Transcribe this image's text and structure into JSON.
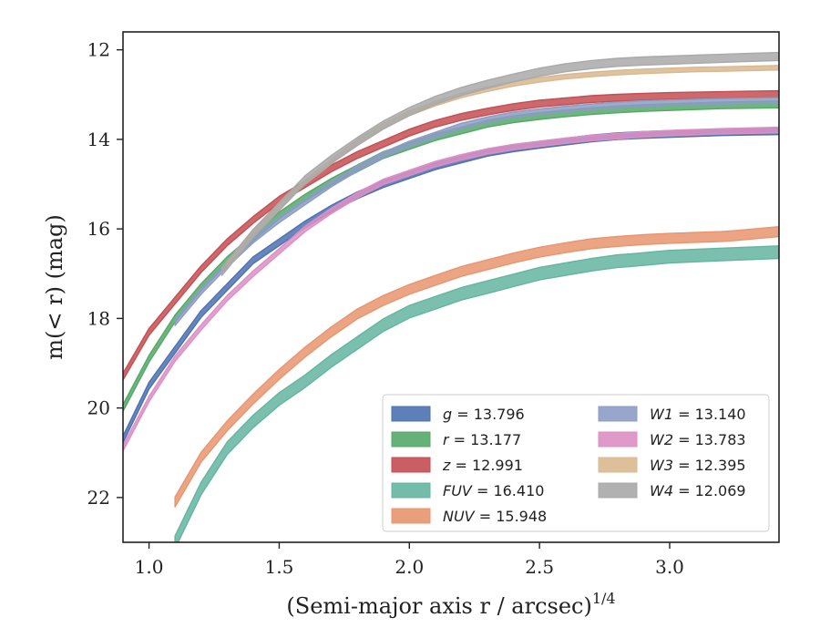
{
  "chart_data": {
    "type": "line",
    "title": "",
    "xlabel": "(Semi-major axis r / arcsec)",
    "xlabel_sup": "1/4",
    "ylabel": "m(< r) (mag)",
    "xlim": [
      0.9,
      3.42
    ],
    "ylim": [
      23.0,
      11.6
    ],
    "y_inverted": true,
    "xticks": [
      1.0,
      1.5,
      2.0,
      2.5,
      3.0
    ],
    "xtick_labels": [
      "1.0",
      "1.5",
      "2.0",
      "2.5",
      "3.0"
    ],
    "yticks": [
      12,
      14,
      16,
      18,
      20,
      22
    ],
    "ytick_labels": [
      "12",
      "14",
      "16",
      "18",
      "20",
      "22"
    ],
    "grid": false,
    "legend_position": "lower-right",
    "legend_columns": 2,
    "series": [
      {
        "name": "g = 13.796",
        "color": "#4c72b0",
        "band_width": 0.15,
        "x": [
          0.9,
          1.0,
          1.1,
          1.2,
          1.3,
          1.4,
          1.5,
          1.6,
          1.7,
          1.8,
          1.9,
          2.0,
          2.1,
          2.2,
          2.3,
          2.4,
          2.5,
          2.6,
          2.7,
          2.8,
          2.9,
          3.0,
          3.1,
          3.2,
          3.3,
          3.42
        ],
        "y": [
          20.7,
          19.5,
          18.7,
          17.9,
          17.3,
          16.7,
          16.3,
          15.9,
          15.55,
          15.25,
          15.0,
          14.8,
          14.6,
          14.45,
          14.3,
          14.2,
          14.12,
          14.05,
          13.98,
          13.93,
          13.9,
          13.88,
          13.86,
          13.84,
          13.83,
          13.82
        ]
      },
      {
        "name": "r = 13.177",
        "color": "#55a868",
        "band_width": 0.15,
        "x": [
          0.9,
          1.0,
          1.1,
          1.2,
          1.3,
          1.4,
          1.5,
          1.6,
          1.7,
          1.8,
          1.9,
          2.0,
          2.1,
          2.2,
          2.3,
          2.4,
          2.5,
          2.6,
          2.7,
          2.8,
          2.9,
          3.0,
          3.1,
          3.2,
          3.3,
          3.42
        ],
        "y": [
          20.0,
          18.9,
          18.0,
          17.3,
          16.7,
          16.2,
          15.7,
          15.3,
          14.95,
          14.65,
          14.35,
          14.15,
          13.95,
          13.8,
          13.65,
          13.55,
          13.48,
          13.42,
          13.37,
          13.33,
          13.3,
          13.28,
          13.26,
          13.24,
          13.23,
          13.22
        ]
      },
      {
        "name": "z = 12.991",
        "color": "#c44e52",
        "band_width": 0.15,
        "x": [
          0.9,
          1.0,
          1.1,
          1.2,
          1.3,
          1.4,
          1.5,
          1.6,
          1.7,
          1.8,
          1.9,
          2.0,
          2.1,
          2.2,
          2.3,
          2.4,
          2.5,
          2.6,
          2.7,
          2.8,
          2.9,
          3.0,
          3.1,
          3.2,
          3.3,
          3.42
        ],
        "y": [
          19.3,
          18.3,
          17.6,
          16.9,
          16.3,
          15.8,
          15.35,
          15.0,
          14.65,
          14.35,
          14.1,
          13.85,
          13.65,
          13.5,
          13.38,
          13.28,
          13.2,
          13.15,
          13.1,
          13.07,
          13.05,
          13.03,
          13.02,
          13.01,
          13.0,
          12.99
        ]
      },
      {
        "name": "FUV = 16.410",
        "color": "#64b5a0",
        "band_width": 0.28,
        "x": [
          1.1,
          1.2,
          1.3,
          1.4,
          1.5,
          1.6,
          1.7,
          1.8,
          1.9,
          2.0,
          2.1,
          2.2,
          2.3,
          2.4,
          2.5,
          2.6,
          2.7,
          2.8,
          2.85,
          3.0,
          3.2,
          3.42
        ],
        "y": [
          23.0,
          21.8,
          20.9,
          20.3,
          19.8,
          19.4,
          18.95,
          18.55,
          18.15,
          17.85,
          17.65,
          17.45,
          17.3,
          17.15,
          17.0,
          16.9,
          16.8,
          16.72,
          16.7,
          16.62,
          16.57,
          16.52
        ]
      },
      {
        "name": "NUV = 15.948",
        "color": "#e8956e",
        "band_width": 0.22,
        "x": [
          1.1,
          1.2,
          1.3,
          1.4,
          1.5,
          1.6,
          1.7,
          1.8,
          1.9,
          2.0,
          2.1,
          2.2,
          2.3,
          2.4,
          2.5,
          2.6,
          2.7,
          2.8,
          2.9,
          3.0,
          3.1,
          3.2,
          3.25,
          3.42
        ],
        "y": [
          22.1,
          21.1,
          20.4,
          19.8,
          19.25,
          18.75,
          18.3,
          17.9,
          17.6,
          17.35,
          17.15,
          16.95,
          16.8,
          16.65,
          16.52,
          16.42,
          16.33,
          16.28,
          16.24,
          16.21,
          16.19,
          16.17,
          16.15,
          16.06
        ]
      },
      {
        "name": "W1 = 13.140",
        "color": "#8c9cc4",
        "band_width": 0.12,
        "x": [
          1.1,
          1.2,
          1.3,
          1.4,
          1.5,
          1.6,
          1.7,
          1.8,
          1.9,
          2.0,
          2.1,
          2.2,
          2.3,
          2.4,
          2.5,
          2.6,
          2.7,
          2.8,
          2.9,
          3.0,
          3.2,
          3.42
        ],
        "y": [
          18.1,
          17.4,
          16.8,
          16.25,
          15.8,
          15.4,
          15.0,
          14.65,
          14.35,
          14.1,
          13.9,
          13.7,
          13.56,
          13.45,
          13.38,
          13.32,
          13.27,
          13.23,
          13.2,
          13.18,
          13.15,
          13.13
        ]
      },
      {
        "name": "W2 = 13.783",
        "color": "#dd8fc4",
        "band_width": 0.12,
        "x": [
          0.9,
          1.0,
          1.1,
          1.2,
          1.3,
          1.4,
          1.5,
          1.6,
          1.7,
          1.8,
          1.9,
          2.0,
          2.1,
          2.2,
          2.3,
          2.4,
          2.5,
          2.6,
          2.7,
          2.8,
          2.9,
          3.0,
          3.2,
          3.42
        ],
        "y": [
          20.9,
          19.8,
          18.9,
          18.2,
          17.55,
          17.0,
          16.5,
          16.0,
          15.6,
          15.25,
          14.95,
          14.75,
          14.55,
          14.4,
          14.27,
          14.17,
          14.1,
          14.03,
          13.97,
          13.93,
          13.89,
          13.86,
          13.82,
          13.79
        ]
      },
      {
        "name": "W3 = 12.395",
        "color": "#d9b88f",
        "band_width": 0.1,
        "x": [
          1.3,
          1.4,
          1.5,
          1.6,
          1.7,
          1.8,
          1.9,
          2.0,
          2.1,
          2.2,
          2.3,
          2.4,
          2.5,
          2.6,
          2.7,
          2.8,
          2.9,
          3.0,
          3.1,
          3.2,
          3.28,
          3.42
        ],
        "y": [
          16.8,
          16.1,
          15.5,
          14.95,
          14.5,
          14.05,
          13.7,
          13.42,
          13.2,
          13.02,
          12.88,
          12.76,
          12.67,
          12.6,
          12.55,
          12.51,
          12.48,
          12.46,
          12.44,
          12.43,
          12.42,
          12.4
        ]
      },
      {
        "name": "W4 = 12.069",
        "color": "#a9a9a9",
        "band_width": 0.18,
        "x": [
          1.28,
          1.4,
          1.5,
          1.6,
          1.7,
          1.8,
          1.9,
          2.0,
          2.1,
          2.2,
          2.3,
          2.4,
          2.5,
          2.6,
          2.7,
          2.8,
          2.9,
          3.0,
          3.1,
          3.2,
          3.3,
          3.42
        ],
        "y": [
          16.95,
          16.1,
          15.5,
          14.9,
          14.45,
          14.05,
          13.68,
          13.38,
          13.13,
          12.93,
          12.77,
          12.63,
          12.5,
          12.4,
          12.33,
          12.28,
          12.25,
          12.23,
          12.21,
          12.19,
          12.17,
          12.15
        ]
      }
    ]
  },
  "legend": {
    "col1": [
      {
        "var": "g",
        "rest": " = 13.796",
        "color": "#4c72b0"
      },
      {
        "var": "r",
        "rest": " = 13.177",
        "color": "#55a868"
      },
      {
        "var": "z",
        "rest": " = 12.991",
        "color": "#c44e52"
      },
      {
        "var": "FUV",
        "rest": " = 16.410",
        "color": "#64b5a0"
      },
      {
        "var": "NUV",
        "rest": " = 15.948",
        "color": "#e8956e"
      }
    ],
    "col2": [
      {
        "var": "W1",
        "rest": " = 13.140",
        "color": "#8c9cc4"
      },
      {
        "var": "W2",
        "rest": " = 13.783",
        "color": "#dd8fc4"
      },
      {
        "var": "W3",
        "rest": " = 12.395",
        "color": "#d9b88f"
      },
      {
        "var": "W4",
        "rest": " = 12.069",
        "color": "#a9a9a9"
      }
    ]
  }
}
